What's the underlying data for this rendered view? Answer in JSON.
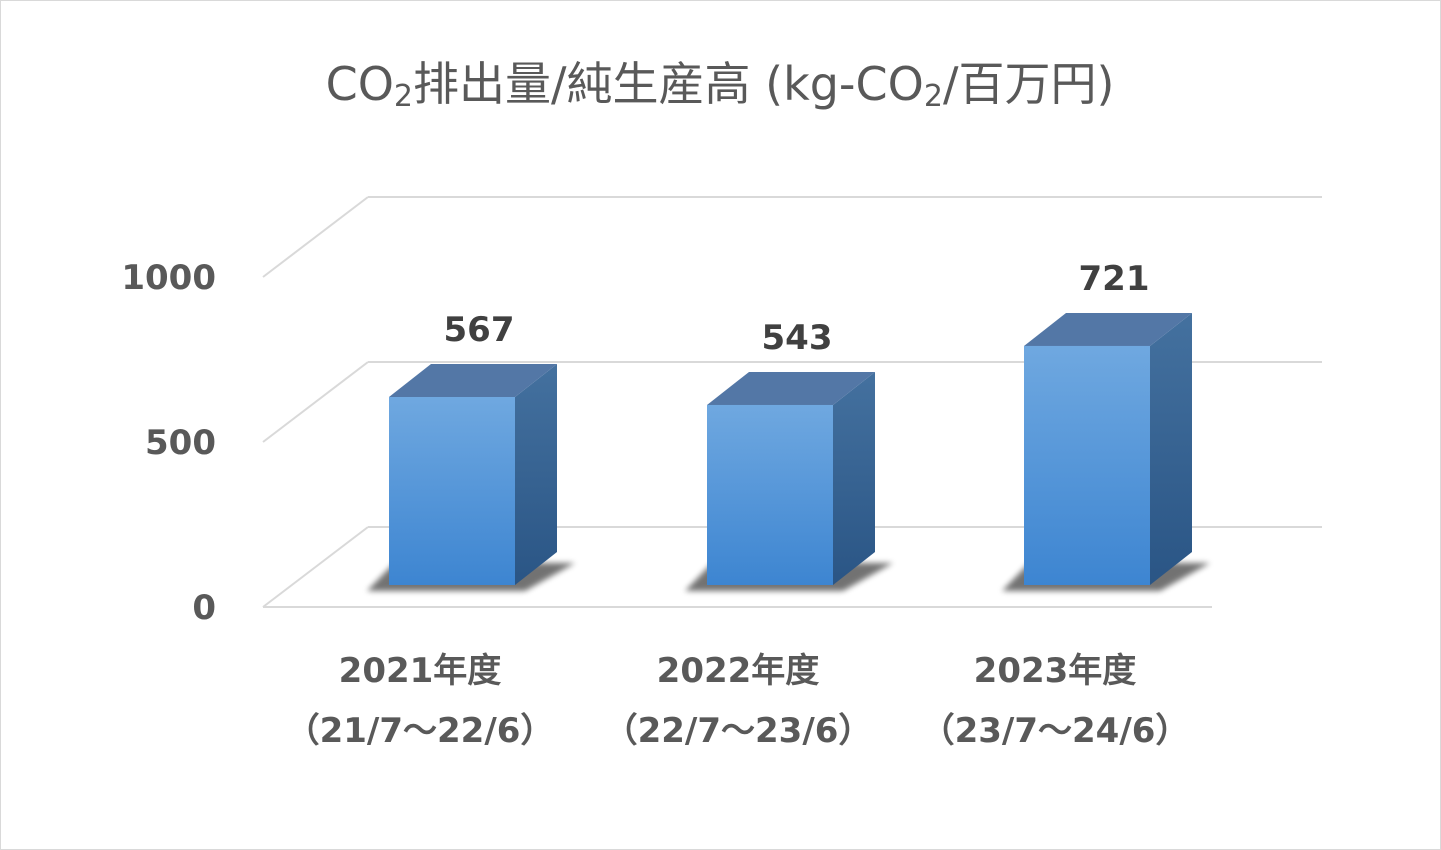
{
  "chart_data": {
    "type": "bar",
    "title_prefix": "CO",
    "title_sub": "2",
    "title_main": "排出量/純生産高 (kg-CO",
    "title_sub2": "2",
    "title_suffix": "/百万円)",
    "title": "CO2排出量/純生産高 (kg-CO2/百万円)",
    "categories": [
      {
        "line1": "2021年度",
        "line2": "（21/7～22/6）"
      },
      {
        "line1": "2022年度",
        "line2": "（22/7～23/6）"
      },
      {
        "line1": "2023年度",
        "line2": "（23/7～24/6）"
      }
    ],
    "values": [
      567,
      543,
      721
    ],
    "value_labels": [
      "567",
      "543",
      "721"
    ],
    "yticks": [
      0,
      500,
      1000
    ],
    "ytick_labels": [
      "0",
      "500",
      "1000"
    ],
    "ylim": [
      0,
      1000
    ],
    "grid": true,
    "legend": "none",
    "bar_style": "3d-column",
    "colors": {
      "bar_front_top": "#6fa8e0",
      "bar_front_bottom": "#3d85d1",
      "bar_side": "#2f5f93",
      "bar_top": "#5377a6",
      "grid": "#d9d9d9",
      "text": "#595959",
      "value_text": "#404040"
    }
  }
}
